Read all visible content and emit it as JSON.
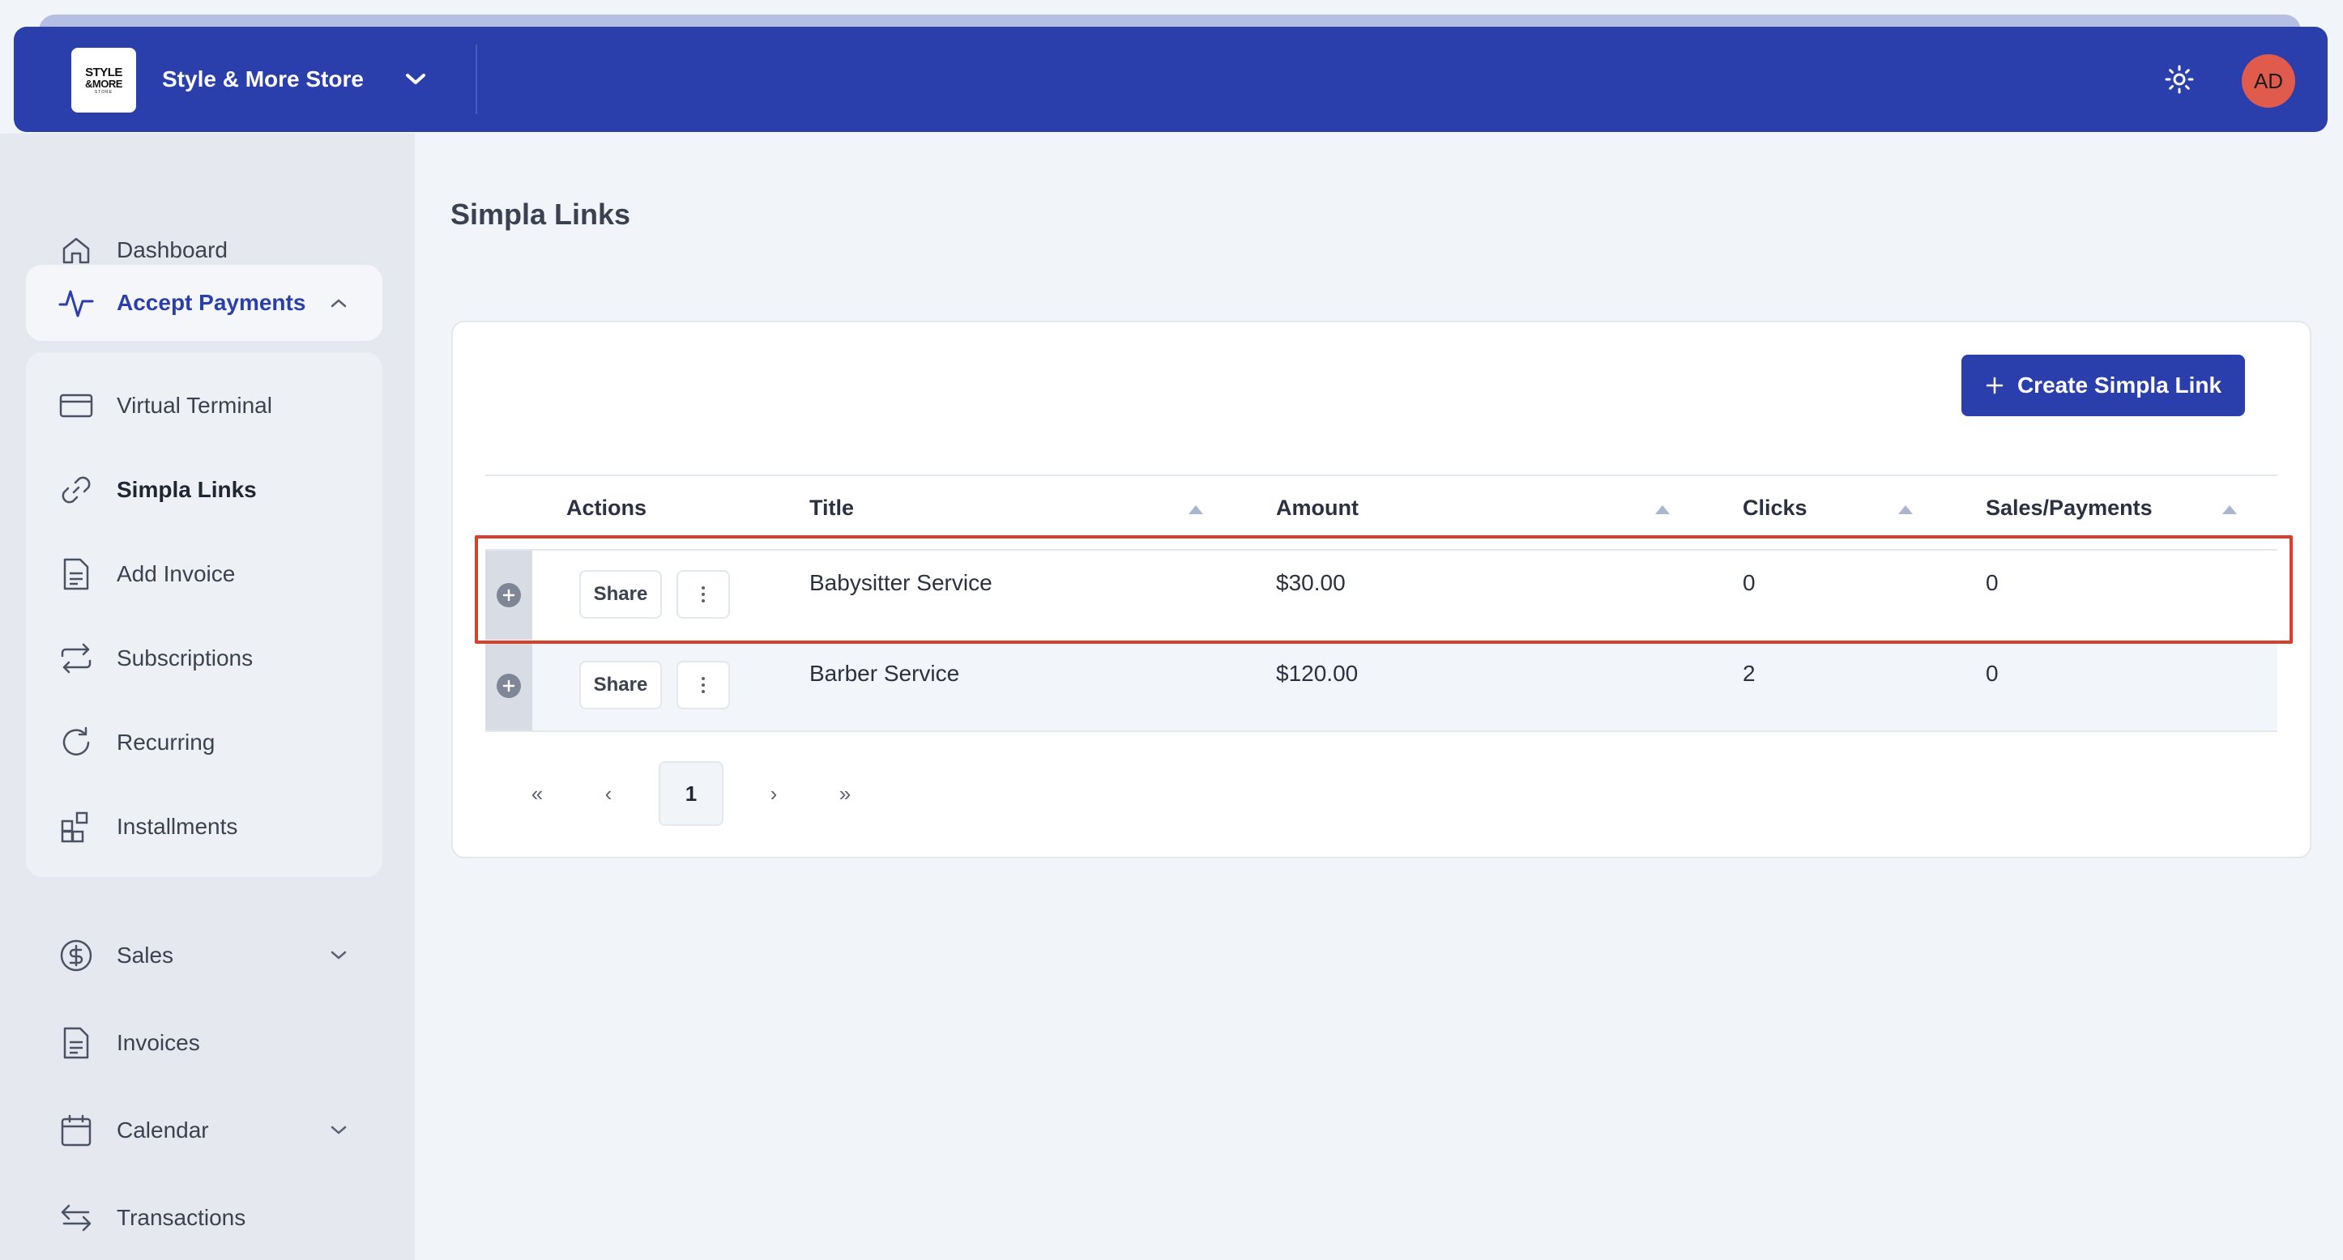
{
  "header": {
    "logo_line1": "STYLE",
    "logo_line2": "&MORE",
    "logo_line3": "STORE",
    "store_name": "Style & More Store",
    "avatar_initials": "AD"
  },
  "sidebar": {
    "items": [
      {
        "label": "Dashboard",
        "icon": "home-icon"
      },
      {
        "label": "Accept Payments",
        "icon": "activity-icon",
        "expanded": true
      },
      {
        "label": "Sales",
        "icon": "dollar-circle-icon"
      },
      {
        "label": "Invoices",
        "icon": "document-icon"
      },
      {
        "label": "Calendar",
        "icon": "calendar-icon"
      },
      {
        "label": "Transactions",
        "icon": "transfer-arrows-icon"
      }
    ],
    "sub_items": [
      {
        "label": "Virtual Terminal",
        "icon": "credit-card-icon"
      },
      {
        "label": "Simpla Links",
        "icon": "link-icon",
        "current": true
      },
      {
        "label": "Add Invoice",
        "icon": "document-icon"
      },
      {
        "label": "Subscriptions",
        "icon": "repeat-icon"
      },
      {
        "label": "Recurring",
        "icon": "refresh-icon"
      },
      {
        "label": "Installments",
        "icon": "apps-add-icon"
      }
    ]
  },
  "main": {
    "title": "Simpla Links",
    "create_button": "Create Simpla Link",
    "table": {
      "headers": [
        "Actions",
        "Title",
        "Amount",
        "Clicks",
        "Sales/Payments"
      ],
      "rows": [
        {
          "share": "Share",
          "title": "Babysitter Service",
          "amount": "$30.00",
          "clicks": "0",
          "sales": "0"
        },
        {
          "share": "Share",
          "title": "Barber Service",
          "amount": "$120.00",
          "clicks": "2",
          "sales": "0"
        }
      ]
    },
    "pagination": {
      "first": "«",
      "prev": "‹",
      "current": "1",
      "next": "›",
      "last": "»"
    }
  },
  "colors": {
    "brand": "#2a3fac",
    "avatar": "#e15b4d",
    "highlight": "#d9402c"
  }
}
